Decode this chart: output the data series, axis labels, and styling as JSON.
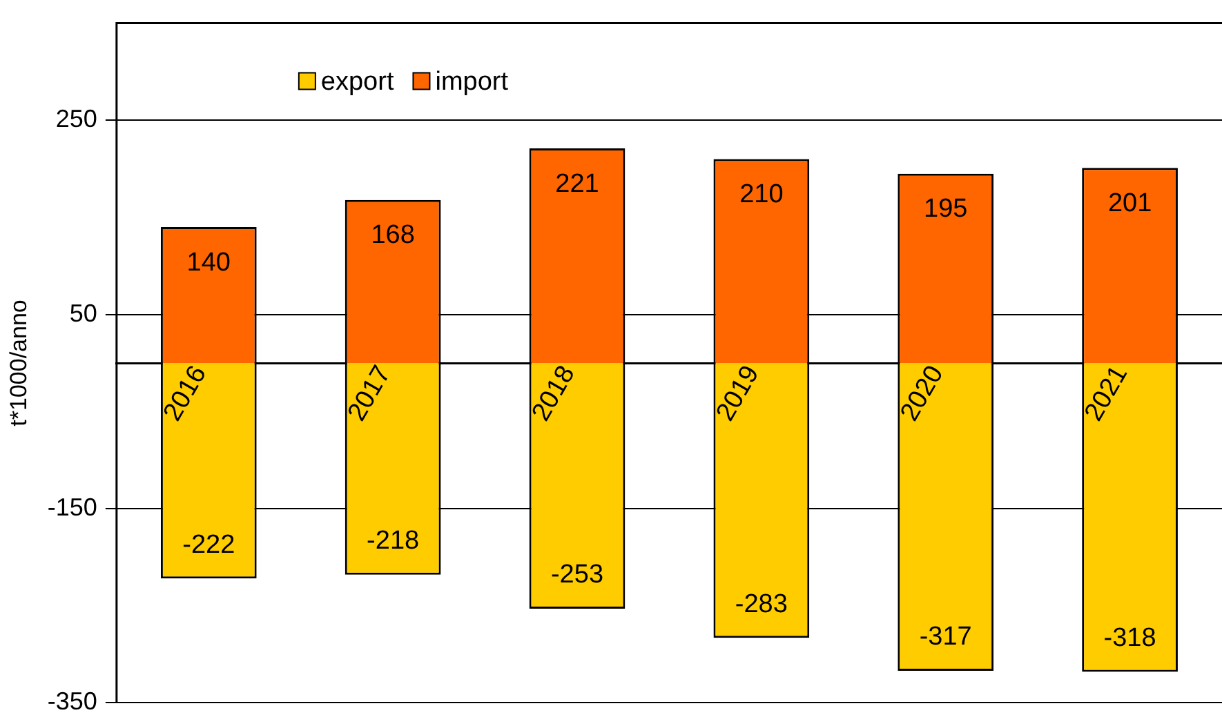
{
  "chart_data": {
    "type": "bar",
    "ylabel": "t*1000/anno",
    "categories": [
      "2016",
      "2017",
      "2018",
      "2019",
      "2020",
      "2021"
    ],
    "series": [
      {
        "name": "export",
        "color": "#ffcc00",
        "values": [
          -222,
          -218,
          -253,
          -283,
          -317,
          -318
        ]
      },
      {
        "name": "import",
        "color": "#ff6600",
        "values": [
          140,
          168,
          221,
          210,
          195,
          201
        ]
      }
    ],
    "stacked": true,
    "ylim": [
      -350,
      350
    ],
    "yticks": [
      -350,
      -150,
      50,
      250
    ],
    "grid": "y",
    "legend": "top left",
    "data_labels": true
  }
}
